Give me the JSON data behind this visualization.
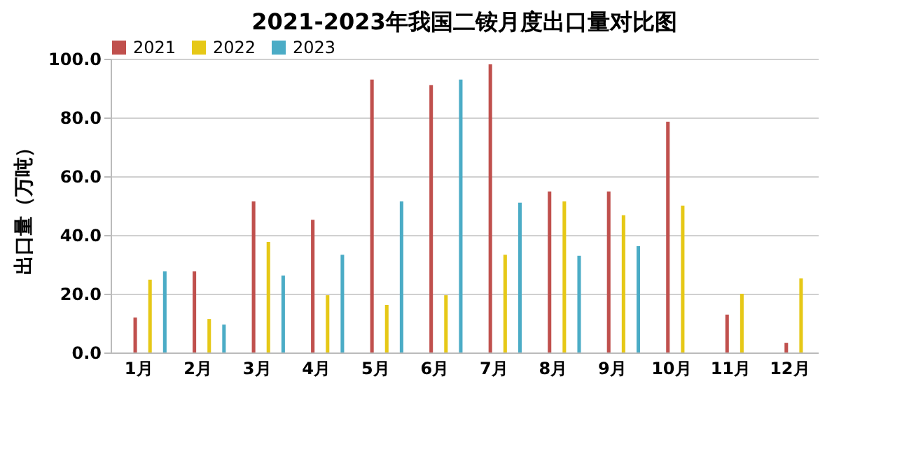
{
  "chart_data": {
    "type": "bar",
    "title": "2021-2023年我国二铵月度出口量对比图",
    "ylabel": "出口量（万吨）",
    "categories": [
      "1月",
      "2月",
      "3月",
      "4月",
      "5月",
      "6月",
      "7月",
      "8月",
      "9月",
      "10月",
      "11月",
      "12月"
    ],
    "series": [
      {
        "name": "2021",
        "color": "#c0504d",
        "values": [
          11.9,
          27.6,
          51.4,
          45.2,
          92.9,
          91.0,
          98.1,
          54.8,
          54.8,
          78.6,
          12.9,
          3.3
        ]
      },
      {
        "name": "2022",
        "color": "#e6c817",
        "values": [
          24.8,
          11.4,
          37.6,
          19.5,
          16.2,
          19.5,
          33.3,
          51.4,
          46.7,
          50.0,
          20.0,
          25.2
        ]
      },
      {
        "name": "2023",
        "color": "#4bacc6",
        "values": [
          27.6,
          9.5,
          26.2,
          33.3,
          51.4,
          92.9,
          51.0,
          32.9,
          36.2,
          null,
          null,
          null
        ]
      }
    ],
    "ylim": [
      0,
      100
    ],
    "yticks": [
      {
        "value": 0,
        "label": "0.0"
      },
      {
        "value": 20,
        "label": "20.0"
      },
      {
        "value": 40,
        "label": "40.0"
      },
      {
        "value": 60,
        "label": "60.0"
      },
      {
        "value": 80,
        "label": "80.0"
      },
      {
        "value": 100,
        "label": "100.0"
      }
    ],
    "grid": "y",
    "legend": "top"
  }
}
